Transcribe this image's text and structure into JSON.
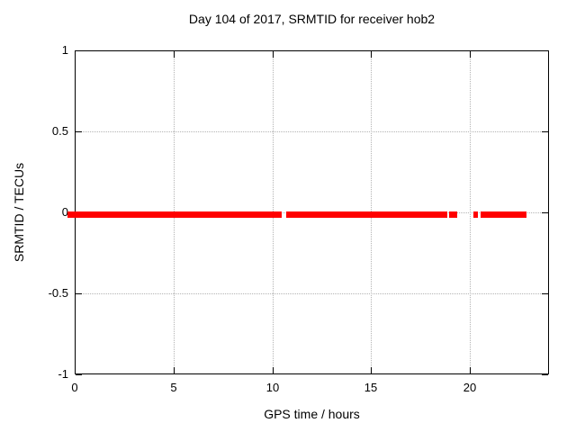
{
  "chart_data": {
    "type": "scatter",
    "title": "Day 104 of 2017, SRMTID for receiver hob2",
    "xlabel": "GPS time / hours",
    "ylabel": "SRMTID / TECUs",
    "xlim": [
      0,
      24
    ],
    "ylim": [
      -1,
      1
    ],
    "xticks": [
      0,
      5,
      10,
      15,
      20
    ],
    "xtick_labels": [
      "0",
      "5",
      "10",
      "15",
      "20"
    ],
    "yticks": [
      -1,
      -0.5,
      0,
      0.5,
      1
    ],
    "ytick_labels": [
      "-1",
      "-0.5",
      "0",
      "0.5",
      "1"
    ],
    "grid_x": [
      5,
      10,
      15,
      20
    ],
    "grid_y": [
      -0.5,
      0,
      0.5
    ],
    "grid": true,
    "legend": "none",
    "series": [
      {
        "name": "SRMTID",
        "color": "#ff0000",
        "marker": "filled-square-band",
        "y_value": 0,
        "segments_hours": [
          [
            -0.35,
            10.48
          ],
          [
            10.7,
            18.86
          ],
          [
            18.95,
            19.36
          ],
          [
            20.18,
            20.42
          ],
          [
            20.55,
            22.87
          ]
        ]
      }
    ]
  },
  "colors": {
    "data_red": "#ff0000",
    "grid_gray": "#b3b3b3",
    "border_black": "#000000",
    "background": "#ffffff"
  }
}
